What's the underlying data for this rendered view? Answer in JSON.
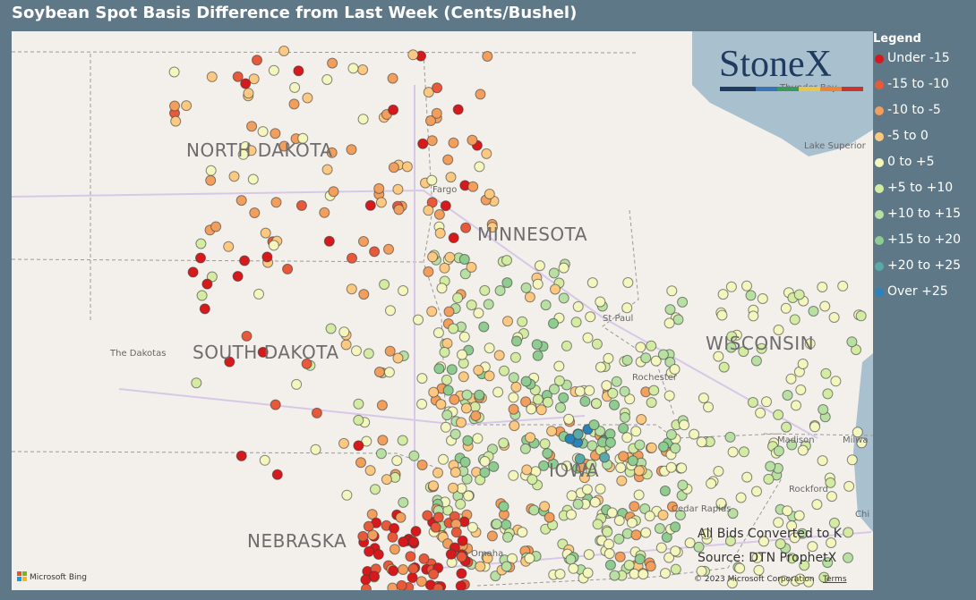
{
  "header": {
    "title": "Soybean Spot Basis Difference from Last Week (Cents/Bushel)"
  },
  "legend": {
    "title": "Legend",
    "items": [
      {
        "label": "Under -15",
        "color": "#d7191c"
      },
      {
        "label": "-15 to -10",
        "color": "#e8593a"
      },
      {
        "label": "-10 to -5",
        "color": "#f29e5c"
      },
      {
        "label": "-5 to 0",
        "color": "#fdc980"
      },
      {
        "label": "0 to +5",
        "color": "#f4f6bd"
      },
      {
        "label": "+5 to +10",
        "color": "#d3eca2"
      },
      {
        "label": "+10 to +15",
        "color": "#b8e0a2"
      },
      {
        "label": "+15 to +20",
        "color": "#8fcc8f"
      },
      {
        "label": "+20 to +25",
        "color": "#5aa9a9"
      },
      {
        "label": "Over +25",
        "color": "#2b83ba"
      }
    ]
  },
  "map": {
    "logo": "StoneX",
    "states": [
      "NORTH DAKOTA",
      "SOUTH DAKOTA",
      "MINNESOTA",
      "WISCONSIN",
      "NEBRASKA",
      "IOWA"
    ],
    "places": [
      "The Dakotas",
      "Fargo",
      "St Paul",
      "Rochester",
      "Madison",
      "Milwa",
      "Rockford",
      "Chi",
      "Omaha",
      "Cedar Rapids",
      "Lake Superior",
      "Thunder Bay"
    ],
    "notes": [
      "All Bids Converted to K",
      "Source: DTN ProphetX"
    ],
    "attribution": "Microsoft Bing",
    "copyright": "© 2023 Microsoft Corporation",
    "terms": "Terms"
  }
}
